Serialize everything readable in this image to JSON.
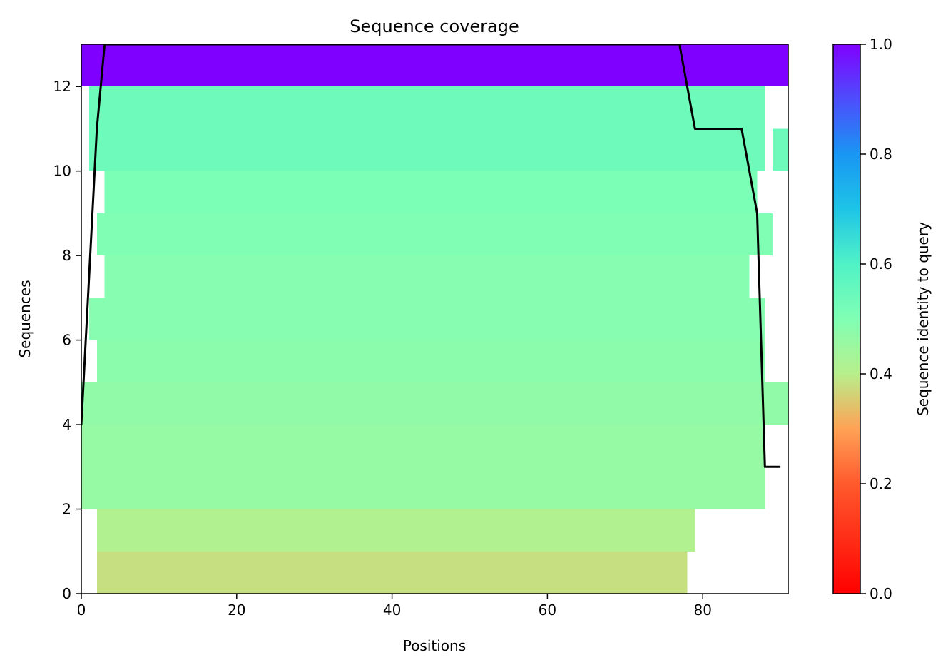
{
  "chart_data": {
    "type": "heatmap",
    "title": "Sequence coverage",
    "xlabel": "Positions",
    "ylabel": "Sequences",
    "xlim": [
      0,
      91
    ],
    "ylim": [
      0,
      13
    ],
    "x_ticks": [
      0,
      20,
      40,
      60,
      80
    ],
    "y_ticks": [
      0,
      2,
      4,
      6,
      8,
      10,
      12
    ],
    "colorbar": {
      "label": "Sequence identity to query",
      "range": [
        0,
        1
      ],
      "ticks": [
        "0.0",
        "0.2",
        "0.4",
        "0.6",
        "0.8",
        "1.0"
      ],
      "colormap": "rainbow_r"
    },
    "rows": [
      {
        "row": 0,
        "start": 2,
        "end": 78,
        "identity": 0.38
      },
      {
        "row": 1,
        "start": 2,
        "end": 79,
        "identity": 0.41
      },
      {
        "row": 2,
        "start": 0,
        "end": 88,
        "identity": 0.46
      },
      {
        "row": 3,
        "start": 0,
        "end": 88,
        "identity": 0.46
      },
      {
        "row": 4,
        "start": 0,
        "end": 91,
        "identity": 0.47
      },
      {
        "row": 5,
        "start": 2,
        "end": 88,
        "identity": 0.48
      },
      {
        "row": 6,
        "start": 1,
        "end": 88,
        "identity": 0.49
      },
      {
        "row": 7,
        "start": 3,
        "end": 86,
        "identity": 0.49
      },
      {
        "row": 8,
        "start": 2,
        "end": 89,
        "identity": 0.5
      },
      {
        "row": 9,
        "start": 3,
        "end": 87,
        "identity": 0.51
      },
      {
        "row": 10,
        "segments": [
          [
            1,
            88
          ],
          [
            89,
            91
          ]
        ],
        "identity": 0.54
      },
      {
        "row": 11,
        "start": 1,
        "end": 88,
        "identity": 0.54
      },
      {
        "row": 12,
        "start": 0,
        "end": 91,
        "identity": 1.0
      }
    ],
    "coverage_line": {
      "name": "",
      "color": "#000000",
      "x": [
        0,
        1,
        2,
        3,
        77,
        78,
        79,
        85,
        86,
        87,
        88,
        90
      ],
      "y": [
        4,
        7.5,
        11,
        13,
        13,
        12,
        11,
        11,
        10,
        9,
        3,
        3
      ]
    }
  }
}
